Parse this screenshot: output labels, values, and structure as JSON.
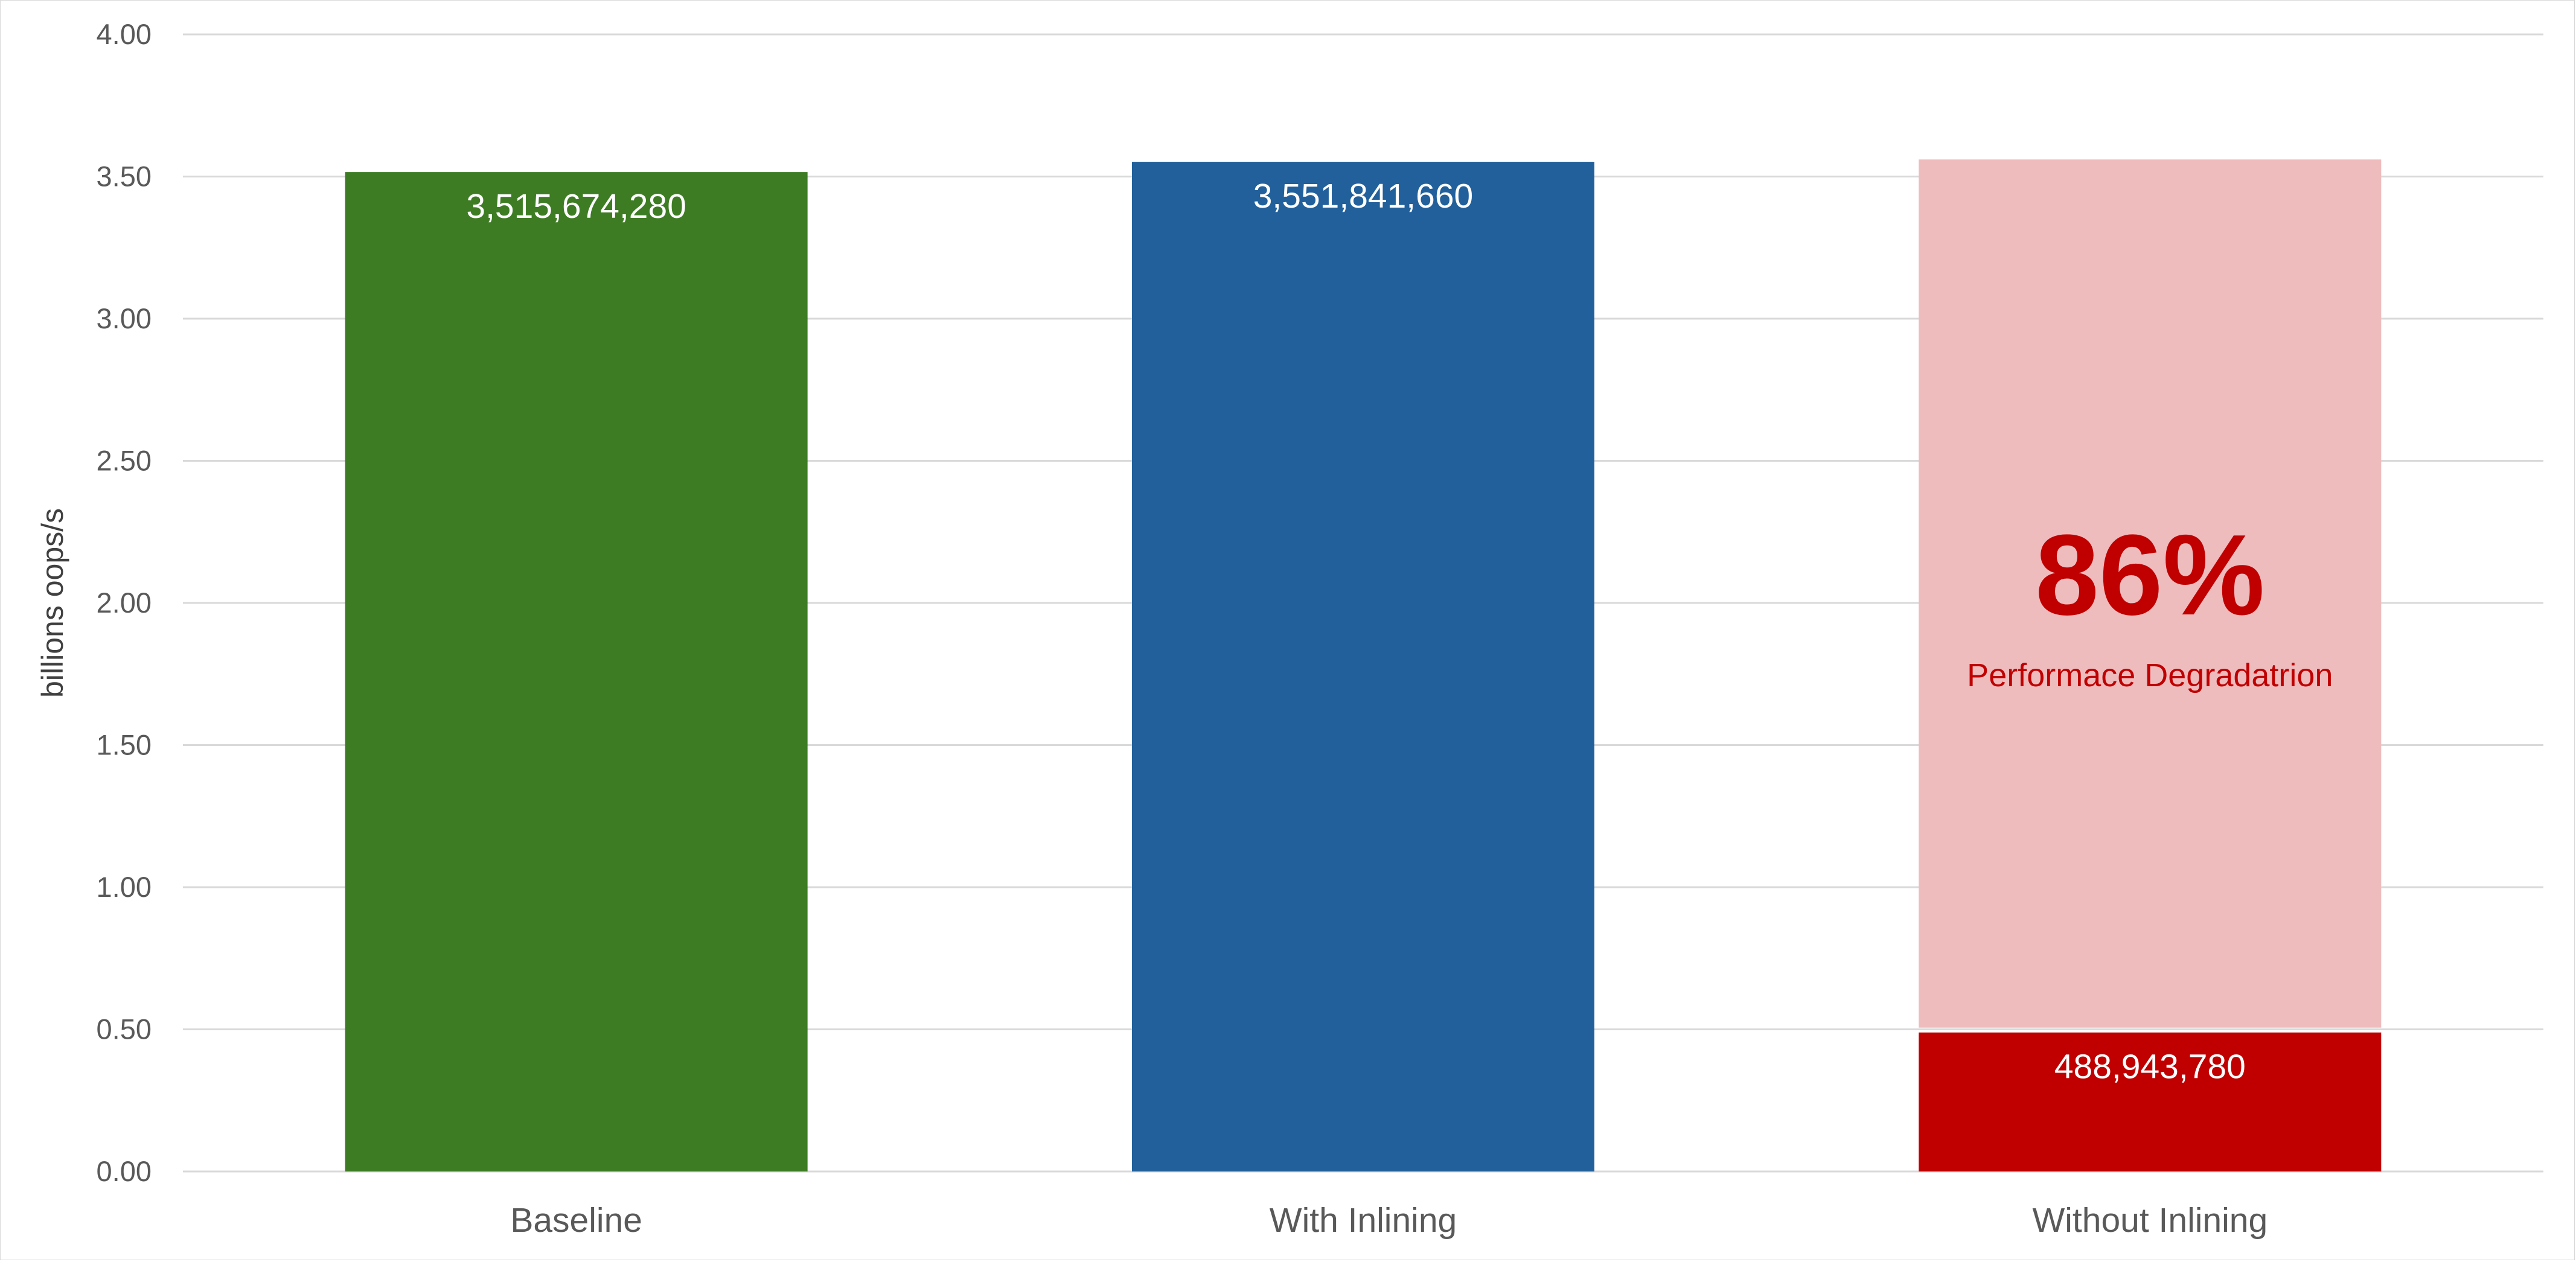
{
  "chart_data": {
    "type": "bar",
    "title": "",
    "xlabel": "",
    "ylabel": "billions oops/s",
    "ylim": [
      0,
      4
    ],
    "y_ticks": [
      "0.00",
      "0.50",
      "1.00",
      "1.50",
      "2.00",
      "2.50",
      "3.00",
      "3.50",
      "4.00"
    ],
    "categories": [
      "Baseline",
      "With Inlining",
      "Without Inlining"
    ],
    "values": [
      3.51567428,
      3.55184166,
      0.48894378
    ],
    "value_labels": [
      "3,515,674,280",
      "3,551,841,660",
      "488,943,780"
    ],
    "bar_colors": [
      "#3d7c23",
      "#21609b",
      "#c00000"
    ],
    "ghost_bar": {
      "category": "Without Inlining",
      "value": 3.56,
      "color": "#efbcbe"
    },
    "grid": true,
    "gridline_color": "#d9d9d9",
    "legend": "none",
    "annotation": {
      "big_text": "86%",
      "small_text": "Performace Degradatrion",
      "color": "#c00000"
    }
  }
}
